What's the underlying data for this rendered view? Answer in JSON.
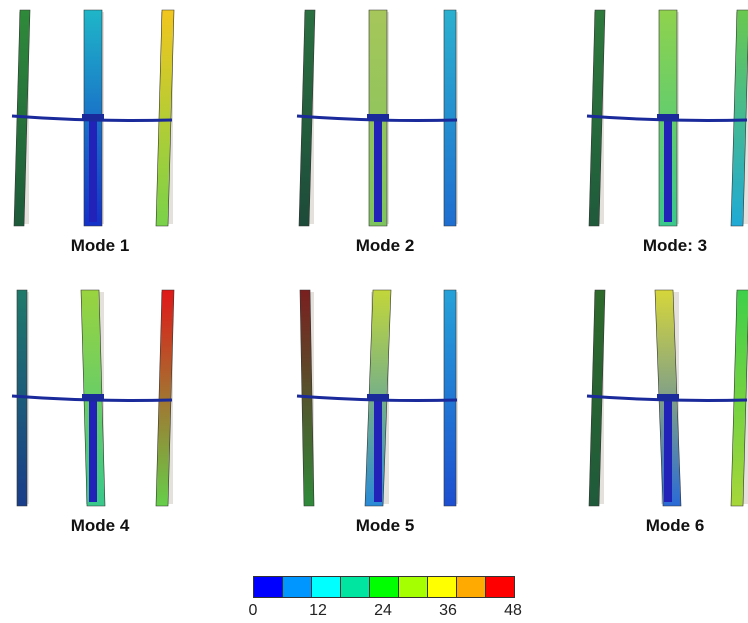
{
  "modes": [
    {
      "label": "Mode 1",
      "blades": [
        [
          "#2f8a3a",
          "#1d5a3a"
        ],
        [
          "#1fb6c8",
          "#1430c8"
        ],
        [
          "#f2c61e",
          "#79d24a"
        ]
      ]
    },
    {
      "label": "Mode 2",
      "blades": [
        [
          "#2a7040",
          "#1d4b3a"
        ],
        [
          "#a6c65a",
          "#7dc45e"
        ],
        [
          "#2bb0cf",
          "#1f6ed0"
        ]
      ]
    },
    {
      "label": "Mode: 3",
      "blades": [
        [
          "#2e7a3c",
          "#1f5a3b"
        ],
        [
          "#8fd24d",
          "#39c88c"
        ],
        [
          "#6ac84e",
          "#1faad6"
        ]
      ]
    },
    {
      "label": "Mode 4",
      "blades": [
        [
          "#1f7a6a",
          "#1a3d8a"
        ],
        [
          "#9ad33f",
          "#39c88c"
        ],
        [
          "#e01818",
          "#66cf4a"
        ]
      ]
    },
    {
      "label": "Mode 5",
      "blades": [
        [
          "#7a1f1f",
          "#2f8a3a"
        ],
        [
          "#c2d63a",
          "#2a8ad6"
        ],
        [
          "#26a2d8",
          "#1d4ed0"
        ]
      ]
    },
    {
      "label": "Mode 6",
      "blades": [
        [
          "#2e6a2a",
          "#1f5a3b"
        ],
        [
          "#d6d63a",
          "#2a6ad6"
        ],
        [
          "#3fcf4a",
          "#a6d63a"
        ]
      ]
    }
  ],
  "legend": {
    "colors": [
      "#0000ff",
      "#0096ff",
      "#00ffff",
      "#00e6a0",
      "#00ff00",
      "#a6ff00",
      "#ffff00",
      "#ffaa00",
      "#ff0000"
    ],
    "ticks": [
      "0",
      "12",
      "24",
      "36",
      "48"
    ],
    "tick_values": [
      0,
      12,
      24,
      36,
      48
    ],
    "range": [
      0,
      48
    ]
  }
}
